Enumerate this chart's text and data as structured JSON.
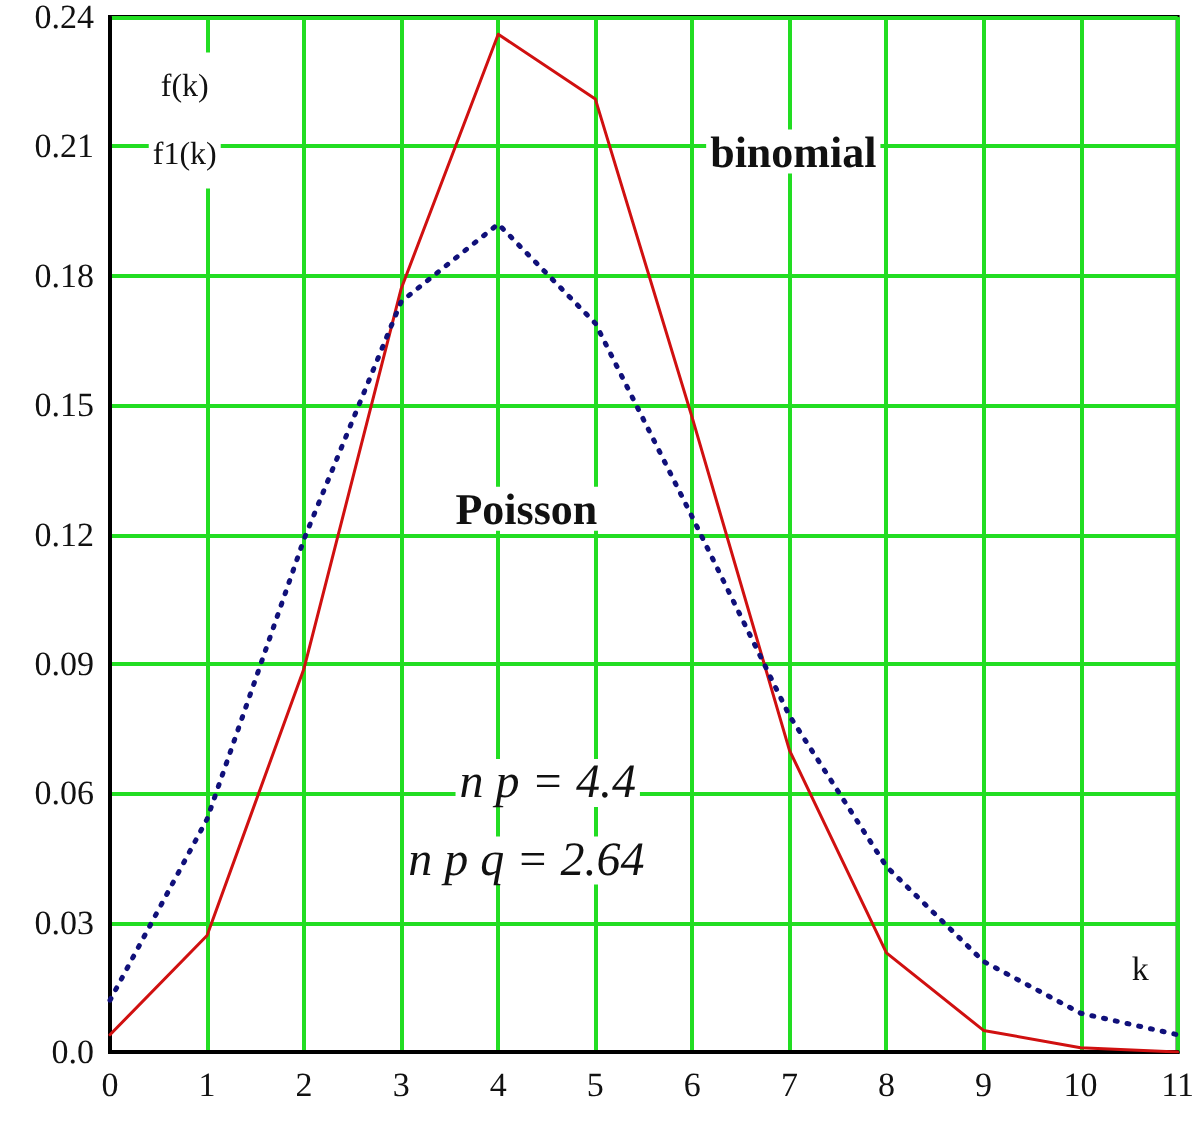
{
  "chart_data": {
    "type": "line",
    "xlabel": "k",
    "ylabel": "f(k)\nf1(k)",
    "x": [
      0,
      1,
      2,
      3,
      4,
      5,
      6,
      7,
      8,
      9,
      10,
      11
    ],
    "series": [
      {
        "name": "binomial",
        "color": "#d01010",
        "line_style": "solid",
        "values": [
          0.004,
          0.027,
          0.089,
          0.177,
          0.236,
          0.221,
          0.147,
          0.07,
          0.023,
          0.005,
          0.001,
          0
        ]
      },
      {
        "name": "Poisson",
        "color": "#10107a",
        "line_style": "dotted",
        "values": [
          0.012,
          0.054,
          0.119,
          0.174,
          0.192,
          0.169,
          0.124,
          0.078,
          0.043,
          0.021,
          0.009,
          0.004
        ]
      }
    ],
    "annotations": [
      "n p = 4.4",
      "n p q = 2.64"
    ],
    "xlim": [
      0,
      11
    ],
    "xticks": [
      0,
      1,
      2,
      3,
      4,
      5,
      6,
      7,
      8,
      9,
      10,
      11
    ],
    "ylim": [
      0,
      0.24
    ],
    "yticks": [
      {
        "value": 0,
        "label": "0.0"
      },
      0.03,
      0.06,
      0.09,
      0.12,
      0.15,
      0.18,
      0.21,
      0.24
    ],
    "grid": true,
    "marker": "none",
    "legend": false
  }
}
